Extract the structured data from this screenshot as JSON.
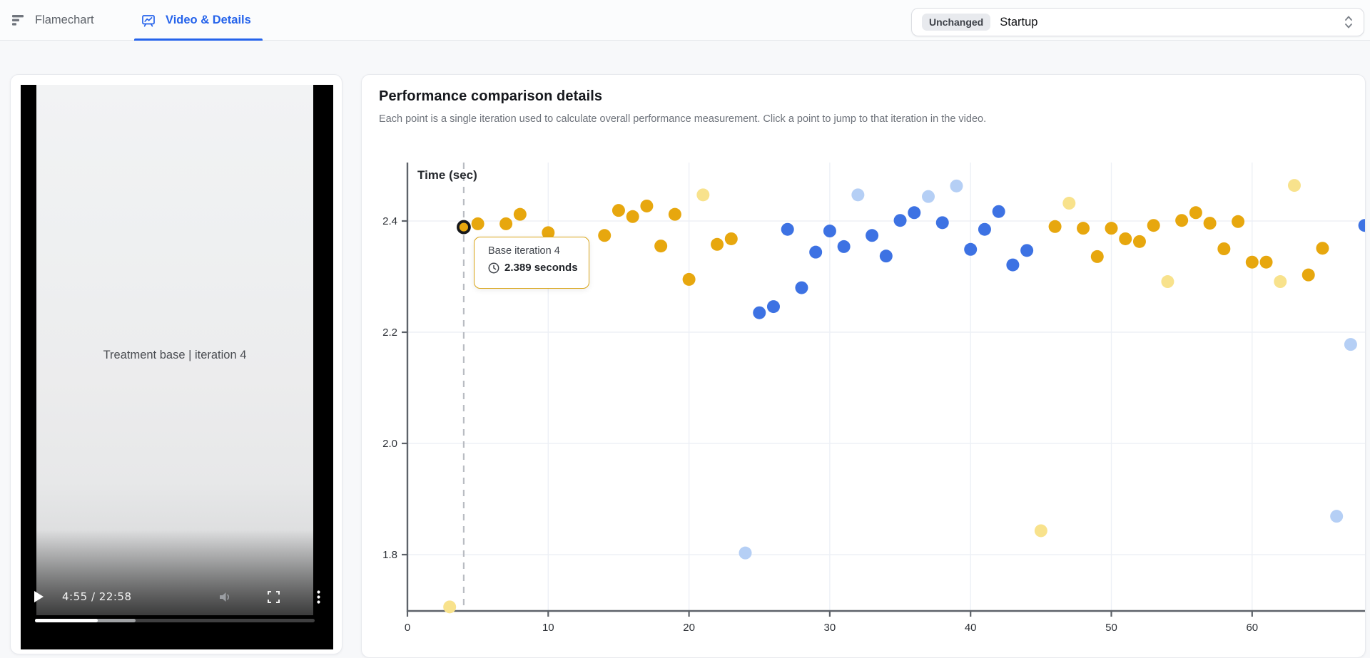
{
  "tabs": [
    {
      "label": "Flamechart"
    },
    {
      "label": "Video & Details"
    }
  ],
  "selector": {
    "badge": "Unchanged",
    "value": "Startup"
  },
  "video": {
    "caption": "Treatment base | iteration 4",
    "time": "4:55 / 22:58",
    "played_pct": 22.5,
    "buffered_pct": 36
  },
  "details": {
    "title": "Performance comparison details",
    "subtitle": "Each point is a single iteration used to calculate overall performance measurement. Click a point to jump to that iteration in the video."
  },
  "tooltip": {
    "title": "Base iteration 4",
    "value": "2.389 seconds"
  },
  "colors": {
    "accent_blue": "#2563eb",
    "base_gold": "#E7A70E",
    "base_faded": "#F8E28C",
    "treatment_blue": "#3D72E3",
    "treatment_faded": "#B5CFF5",
    "tooltip_border": "#D9A416",
    "axis": "#5d6269",
    "grid": "#edf0f6",
    "dashed_line": "#b9bcc2"
  },
  "chart_data": {
    "type": "scatter",
    "y_axis_title": "Time (sec)",
    "x_ticks": [
      0,
      10,
      20,
      30,
      40,
      50,
      60
    ],
    "y_ticks": [
      "2.4",
      "2.2",
      "2.0",
      "1.8"
    ],
    "y_tick_values": [
      2.4,
      2.2,
      2.0,
      1.8
    ],
    "x_range": [
      0,
      68.2
    ],
    "y_range": [
      1.7,
      2.505
    ],
    "grid": true,
    "selected_line_x": 4,
    "selected_point": {
      "x": 4,
      "y": 2.389,
      "series": "base"
    },
    "series": [
      {
        "name": "base",
        "color": "#E7A70E",
        "points": [
          [
            4,
            2.389
          ],
          [
            5,
            2.395
          ],
          [
            7,
            2.395
          ],
          [
            8,
            2.412
          ],
          [
            10,
            2.379
          ],
          [
            14,
            2.374
          ],
          [
            15,
            2.419
          ],
          [
            16,
            2.408
          ],
          [
            17,
            2.427
          ],
          [
            18,
            2.355
          ],
          [
            19,
            2.412
          ],
          [
            20,
            2.295
          ],
          [
            22,
            2.358
          ],
          [
            23,
            2.368
          ],
          [
            46,
            2.39
          ],
          [
            48,
            2.387
          ],
          [
            49,
            2.336
          ],
          [
            50,
            2.387
          ],
          [
            51,
            2.368
          ],
          [
            52,
            2.363
          ],
          [
            53,
            2.392
          ],
          [
            55,
            2.401
          ],
          [
            56,
            2.415
          ],
          [
            57,
            2.396
          ],
          [
            58,
            2.35
          ],
          [
            59,
            2.399
          ],
          [
            60,
            2.326
          ],
          [
            61,
            2.326
          ],
          [
            64,
            2.303
          ],
          [
            65,
            2.351
          ]
        ]
      },
      {
        "name": "base-outlier",
        "color": "#F8E28C",
        "points": [
          [
            3,
            1.706
          ],
          [
            21,
            2.447
          ],
          [
            45,
            1.843
          ],
          [
            47,
            2.432
          ],
          [
            54,
            2.291
          ],
          [
            62,
            2.291
          ],
          [
            63,
            2.464
          ]
        ]
      },
      {
        "name": "treatment",
        "color": "#3D72E3",
        "points": [
          [
            25,
            2.235
          ],
          [
            26,
            2.246
          ],
          [
            27,
            2.385
          ],
          [
            28,
            2.28
          ],
          [
            29,
            2.344
          ],
          [
            30,
            2.382
          ],
          [
            31,
            2.354
          ],
          [
            33,
            2.374
          ],
          [
            34,
            2.337
          ],
          [
            35,
            2.401
          ],
          [
            36,
            2.415
          ],
          [
            38,
            2.397
          ],
          [
            40,
            2.349
          ],
          [
            41,
            2.385
          ],
          [
            42,
            2.417
          ],
          [
            43,
            2.321
          ],
          [
            44,
            2.347
          ],
          [
            68,
            2.392
          ]
        ]
      },
      {
        "name": "treatment-outlier",
        "color": "#B5CFF5",
        "points": [
          [
            24,
            1.803
          ],
          [
            32,
            2.447
          ],
          [
            37,
            2.444
          ],
          [
            39,
            2.463
          ],
          [
            66,
            1.869
          ],
          [
            67,
            2.178
          ]
        ]
      }
    ]
  }
}
